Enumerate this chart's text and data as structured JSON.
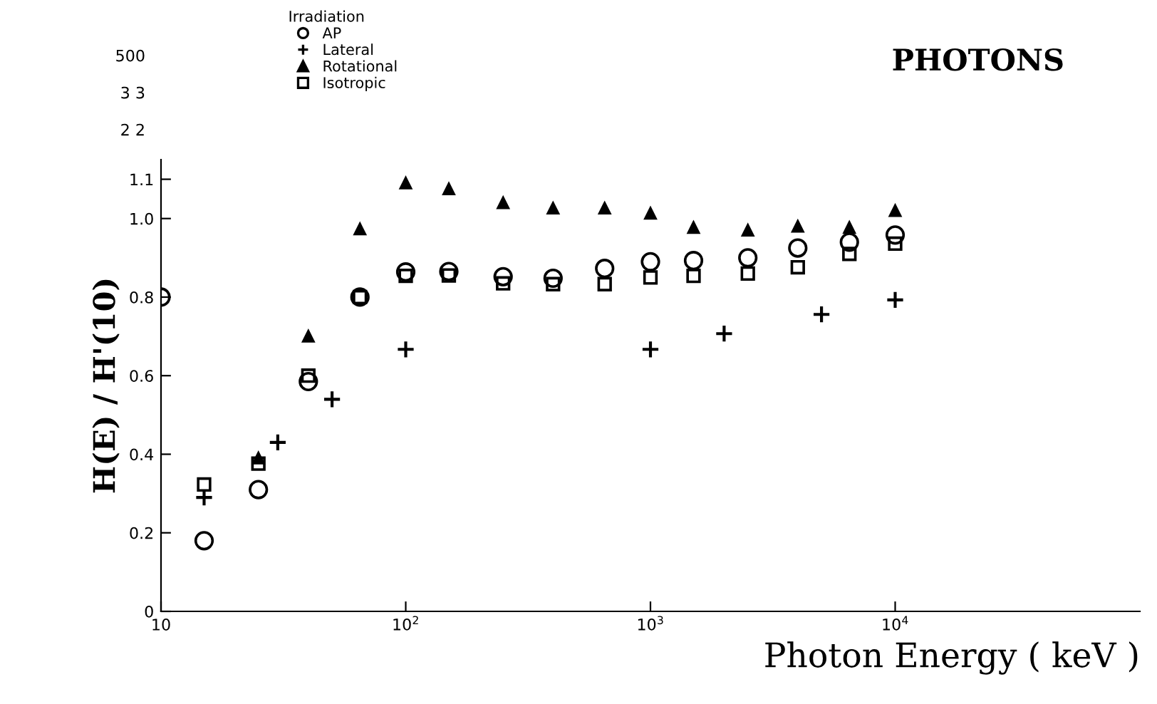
{
  "chart_data": {
    "type": "scatter",
    "title": "PHOTONS",
    "xlabel": "Photon Energy ( keV )",
    "ylabel": "H(E) / H'(10)",
    "legend_title": "Irradiation",
    "legend": "top left",
    "log": "x",
    "grid": false,
    "xlim": [
      10,
      100000
    ],
    "xticks": [
      {
        "value": 10,
        "label": "10"
      },
      {
        "value": 100,
        "label": "10$^{2}$"
      },
      {
        "value": 1000,
        "label": "10$^{3}$"
      },
      {
        "value": 10000,
        "label": "10$^{4}$"
      }
    ],
    "ylim": [
      0,
      1.15
    ],
    "yticks": [
      0,
      0.2,
      0.4,
      0.6,
      0.8,
      {
        "value": 1,
        "label": "1.0"
      },
      1.1
    ],
    "annotations": [
      "500",
      "3 3",
      "2 2"
    ],
    "series": [
      {
        "name": "AP",
        "color": "#000000",
        "marker": "circle",
        "x": [
          10,
          15,
          25,
          40,
          65,
          100,
          150,
          250,
          400,
          650,
          1000,
          1500,
          2500,
          4000,
          6500,
          10000
        ],
        "values": [
          0.8,
          0.18,
          0.31,
          0.585,
          0.8,
          0.864,
          0.865,
          0.852,
          0.848,
          0.873,
          0.89,
          0.893,
          0.9,
          0.925,
          0.94,
          0.958
        ]
      },
      {
        "name": "Lateral",
        "color": "#000000",
        "marker": "cross",
        "x": [
          15,
          30,
          50,
          100,
          1000,
          2000,
          5000,
          10000
        ],
        "values": [
          0.29,
          0.43,
          0.54,
          0.667,
          0.667,
          0.707,
          0.756,
          0.793
        ]
      },
      {
        "name": "Rotational",
        "color": "#000000",
        "marker": "triangle",
        "x": [
          25,
          40,
          65,
          100,
          150,
          250,
          400,
          650,
          1000,
          1500,
          2500,
          4000,
          6500,
          10000
        ],
        "values": [
          0.39,
          0.7,
          0.973,
          1.09,
          1.075,
          1.04,
          1.026,
          1.026,
          1.013,
          0.977,
          0.97,
          0.98,
          0.977,
          1.02
        ]
      },
      {
        "name": "Isotropic",
        "color": "#000000",
        "marker": "square",
        "x": [
          15,
          25,
          40,
          65,
          100,
          150,
          250,
          400,
          650,
          1000,
          1500,
          2500,
          4000,
          6500,
          10000
        ],
        "values": [
          0.323,
          0.376,
          0.6,
          0.8,
          0.854,
          0.855,
          0.835,
          0.833,
          0.833,
          0.85,
          0.854,
          0.86,
          0.876,
          0.91,
          0.936
        ]
      }
    ]
  }
}
